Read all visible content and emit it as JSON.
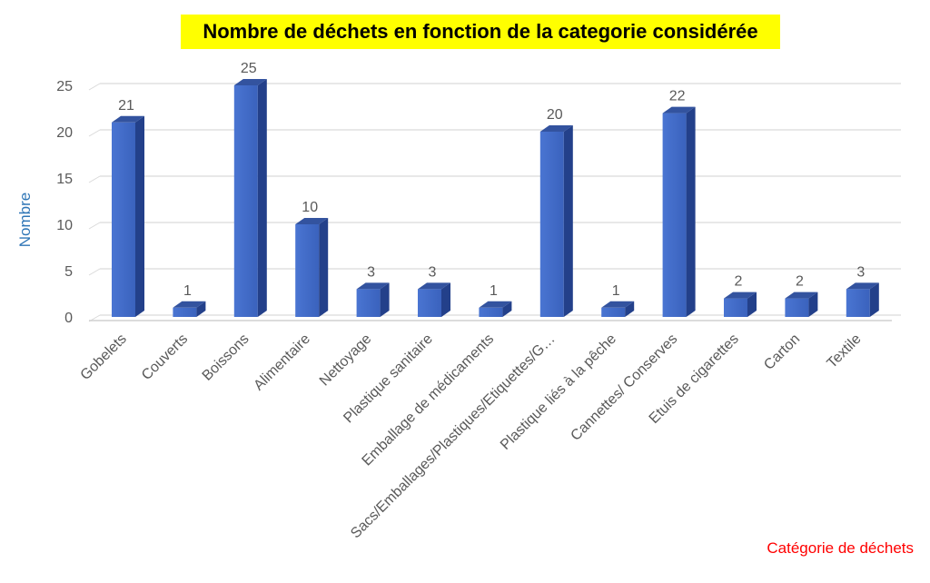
{
  "chart_data": {
    "type": "bar",
    "title": "Nombre de déchets en fonction de la categorie considérée",
    "xlabel": "Catégorie de déchets",
    "ylabel": "Nombre",
    "categories": [
      "Gobelets",
      "Couverts",
      "Boissons",
      "Alimentaire",
      "Nettoyage",
      "Plastique sanitaire",
      "Emballage de médicaments",
      "Sacs/Emballages/Plastiques/Etiquettes/G…",
      "Plastique liés à la pêche",
      "Cannettes/ Conserves",
      "Etuis de cigarettes",
      "Carton",
      "Textile"
    ],
    "values": [
      21,
      1,
      25,
      10,
      3,
      3,
      1,
      20,
      1,
      22,
      2,
      2,
      3
    ],
    "ylim": [
      0,
      25
    ],
    "yticks": [
      0,
      5,
      10,
      15,
      20,
      25
    ],
    "grid": true,
    "legend": "none",
    "colors": {
      "bar_front": "#3f69c6",
      "bar_side": "#23408a",
      "bar_top": "#33539f",
      "grid": "#d9d9d9",
      "tick_text": "#595959",
      "title_bg": "#ffff00",
      "ylabel": "#2e75b6",
      "xlabel": "#ff0000"
    }
  }
}
